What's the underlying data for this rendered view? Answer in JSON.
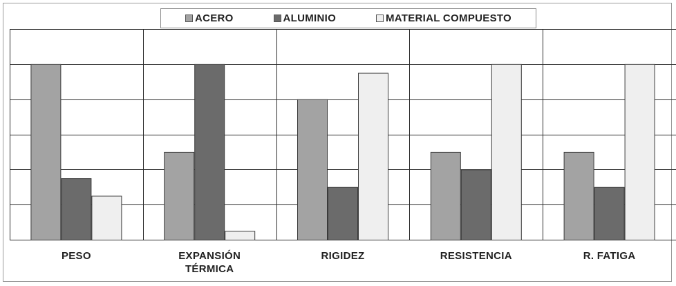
{
  "chart_data": {
    "type": "bar",
    "categories": [
      "PESO",
      "EXPANSIÓN\nTÉRMICA",
      "RIGIDEZ",
      "RESISTENCIA",
      "R. FATIGA"
    ],
    "series": [
      {
        "name": "ACERO",
        "color": "#a3a3a3",
        "values": [
          5,
          2.5,
          4,
          2.5,
          2.5
        ]
      },
      {
        "name": "ALUMINIO",
        "color": "#6b6b6b",
        "values": [
          1.75,
          5,
          1.5,
          2,
          1.5
        ]
      },
      {
        "name": "MATERIAL COMPUESTO",
        "color": "#efefef",
        "values": [
          1.25,
          0.25,
          4.75,
          5,
          5
        ]
      }
    ],
    "ylim": [
      0,
      6
    ],
    "grid": true,
    "legend_position": "top-center",
    "title": "",
    "xlabel": "",
    "ylabel": ""
  }
}
